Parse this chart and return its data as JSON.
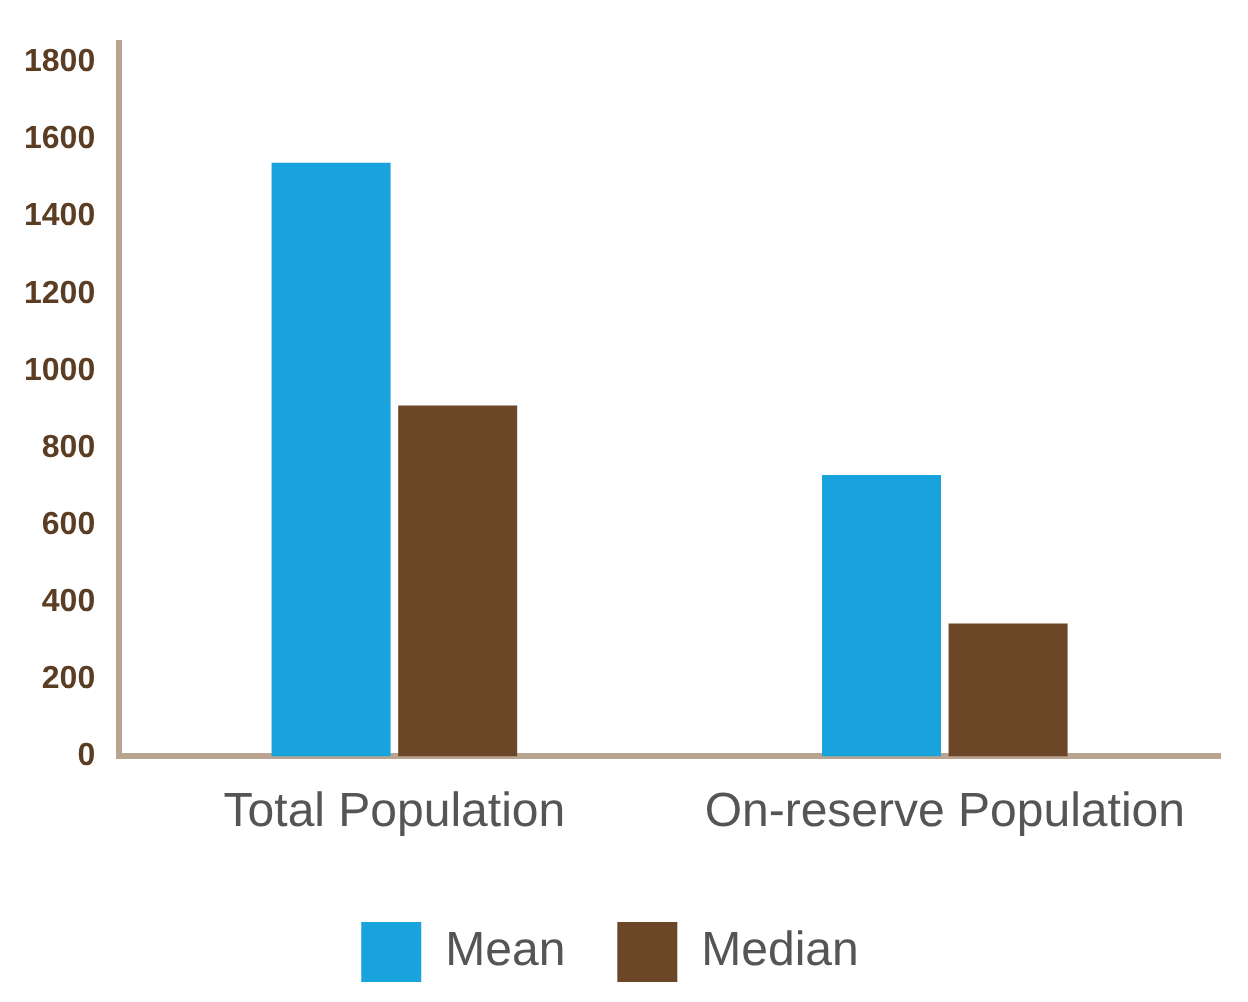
{
  "chart_data": {
    "type": "bar",
    "categories": [
      "Total Population",
      "On-reserve Population"
    ],
    "series": [
      {
        "name": "Mean",
        "color": "#18a3dc",
        "values": [
          1540,
          730
        ]
      },
      {
        "name": "Median",
        "color": "#6b4627",
        "values": [
          910,
          345
        ]
      }
    ],
    "ylim": [
      0,
      1850
    ],
    "yticks": [
      0,
      200,
      400,
      600,
      800,
      1000,
      1200,
      1400,
      1600,
      1800
    ],
    "grid": false,
    "legend": "bottom"
  }
}
